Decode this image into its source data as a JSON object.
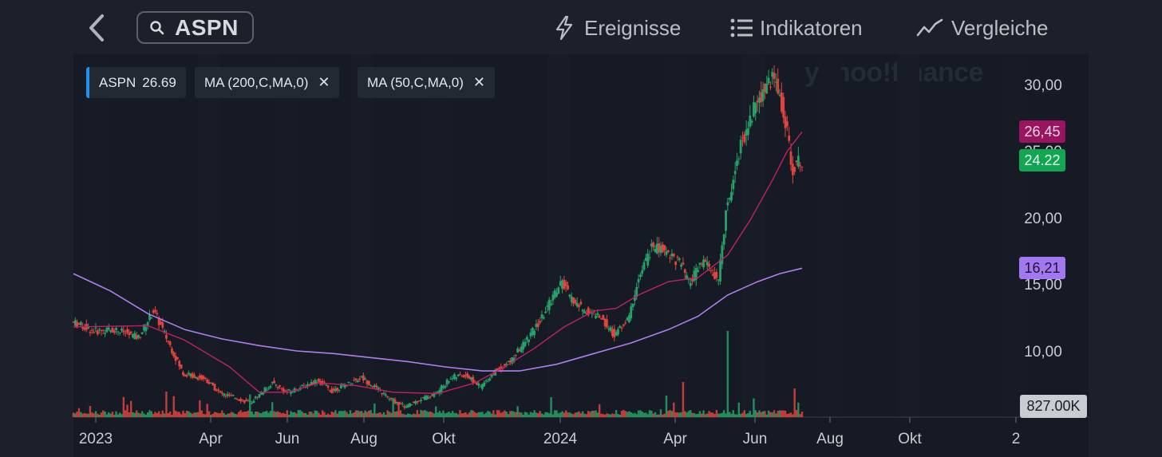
{
  "header": {
    "search_value": "ASPN",
    "nav": {
      "events": "Ereignisse",
      "indicators": "Indikatoren",
      "compare": "Vergleiche"
    }
  },
  "legend": {
    "symbol": "ASPN",
    "symbol_value": "26.69",
    "ma200_label": "MA (200,C,MA,0)",
    "ma50_label": "MA (50,C,MA,0)",
    "close_icon": "close-icon"
  },
  "watermark": "yahoo!finance",
  "price_tags": {
    "ma50": "26,45",
    "last": "24.22",
    "ma200": "16,21",
    "hidden_axis": "25,00"
  },
  "volume_tag": "827.00K",
  "colors": {
    "up": "#26a269",
    "down": "#e0443e",
    "ma50": "#c0206a",
    "ma200": "#b07ef0",
    "last_tag": "#12a552",
    "ma50_tag": "#9b1460",
    "ma200_tag": "#a377f0"
  },
  "chart_data": {
    "type": "line",
    "title": "",
    "ylim": [
      5,
      32
    ],
    "y_ticks": [
      "10,00",
      "15,00",
      "20,00",
      "30,00"
    ],
    "x_ticks": [
      "2023",
      "Apr",
      "Jun",
      "Aug",
      "Okt",
      "2024",
      "Apr",
      "Jun",
      "Aug",
      "Okt",
      "2"
    ],
    "series": [
      {
        "name": "ASPN",
        "points": [
          [
            0,
            12.2
          ],
          [
            6,
            11.5
          ],
          [
            12,
            11.6
          ],
          [
            18,
            11.0
          ],
          [
            22,
            13.0
          ],
          [
            24,
            11.9
          ],
          [
            30,
            8.3
          ],
          [
            36,
            7.9
          ],
          [
            40,
            6.8
          ],
          [
            44,
            6.5
          ],
          [
            48,
            6.1
          ],
          [
            50,
            6.6
          ],
          [
            54,
            7.6
          ],
          [
            58,
            6.9
          ],
          [
            62,
            7.3
          ],
          [
            66,
            7.8
          ],
          [
            70,
            7.0
          ],
          [
            74,
            7.5
          ],
          [
            78,
            8.0
          ],
          [
            82,
            7.2
          ],
          [
            86,
            6.3
          ],
          [
            90,
            5.8
          ],
          [
            94,
            6.4
          ],
          [
            98,
            6.8
          ],
          [
            102,
            8.0
          ],
          [
            106,
            8.2
          ],
          [
            110,
            7.3
          ],
          [
            114,
            8.5
          ],
          [
            118,
            9.2
          ],
          [
            122,
            10.7
          ],
          [
            126,
            12.2
          ],
          [
            130,
            14.4
          ],
          [
            132,
            15.2
          ],
          [
            134,
            14.0
          ],
          [
            138,
            13.0
          ],
          [
            142,
            12.6
          ],
          [
            146,
            11.2
          ],
          [
            150,
            12.5
          ],
          [
            152,
            15.0
          ],
          [
            156,
            17.8
          ],
          [
            160,
            17.5
          ],
          [
            164,
            16.5
          ],
          [
            166,
            15.0
          ],
          [
            170,
            16.8
          ],
          [
            174,
            15.2
          ],
          [
            176,
            20.5
          ],
          [
            180,
            25.5
          ],
          [
            184,
            28.5
          ],
          [
            188,
            30.5
          ],
          [
            190,
            29.8
          ],
          [
            192,
            27.0
          ],
          [
            194,
            23.8
          ],
          [
            196,
            24.22
          ]
        ]
      },
      {
        "name": "MA (50,C,MA,0)",
        "points": [
          [
            0,
            11.8
          ],
          [
            20,
            11.9
          ],
          [
            30,
            10.8
          ],
          [
            42,
            8.8
          ],
          [
            50,
            6.9
          ],
          [
            58,
            6.9
          ],
          [
            66,
            7.6
          ],
          [
            76,
            7.4
          ],
          [
            86,
            6.9
          ],
          [
            98,
            6.8
          ],
          [
            108,
            7.6
          ],
          [
            116,
            8.8
          ],
          [
            124,
            10.2
          ],
          [
            132,
            11.8
          ],
          [
            140,
            13.0
          ],
          [
            146,
            13.2
          ],
          [
            152,
            14.2
          ],
          [
            160,
            15.2
          ],
          [
            168,
            15.5
          ],
          [
            176,
            17.2
          ],
          [
            182,
            19.8
          ],
          [
            188,
            22.8
          ],
          [
            192,
            25.0
          ],
          [
            196,
            26.45
          ]
        ]
      },
      {
        "name": "MA (200,C,MA,0)",
        "points": [
          [
            0,
            15.8
          ],
          [
            10,
            14.5
          ],
          [
            20,
            12.8
          ],
          [
            30,
            11.6
          ],
          [
            40,
            10.9
          ],
          [
            50,
            10.4
          ],
          [
            60,
            10.0
          ],
          [
            70,
            9.8
          ],
          [
            80,
            9.5
          ],
          [
            90,
            9.2
          ],
          [
            100,
            8.8
          ],
          [
            110,
            8.5
          ],
          [
            120,
            8.5
          ],
          [
            130,
            9.0
          ],
          [
            140,
            9.8
          ],
          [
            150,
            10.6
          ],
          [
            160,
            11.6
          ],
          [
            168,
            12.6
          ],
          [
            176,
            14.2
          ],
          [
            184,
            15.2
          ],
          [
            190,
            15.8
          ],
          [
            196,
            16.21
          ]
        ]
      }
    ]
  }
}
